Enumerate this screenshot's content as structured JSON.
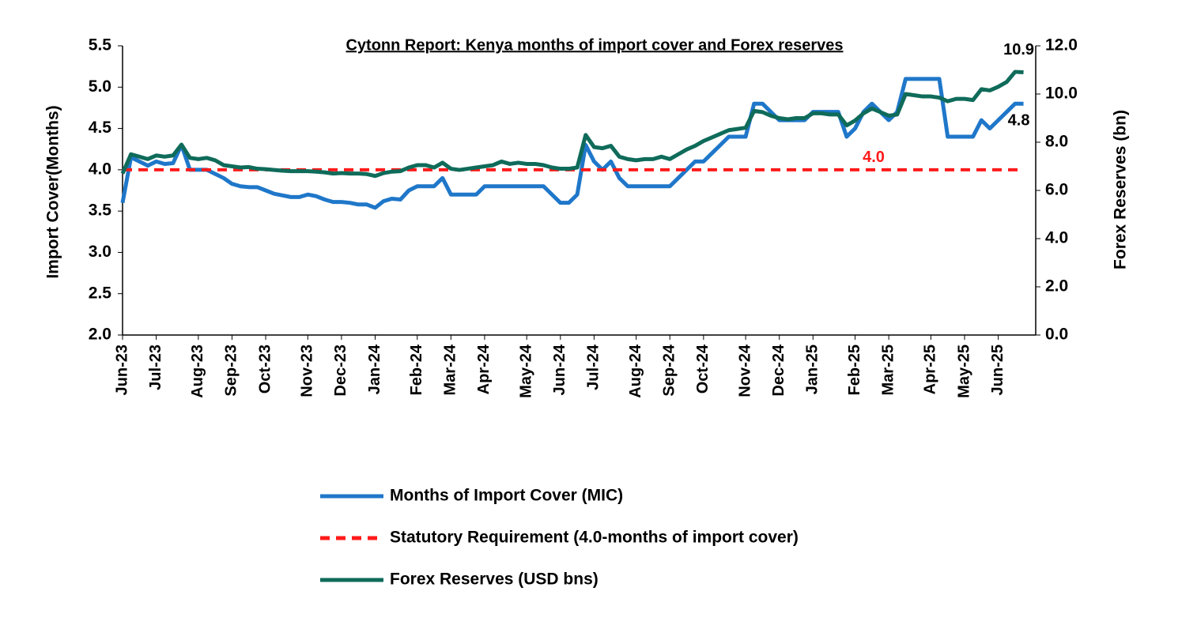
{
  "chart_data": {
    "type": "line",
    "title": "Cytonn Report: Kenya months of import cover and Forex reserves",
    "y_label": "Import Cover(Months)",
    "y2_label": "Forex Reserves (bn)",
    "categories": [
      "Jun-23",
      null,
      null,
      null,
      "Jul-23",
      null,
      null,
      null,
      null,
      "Aug-23",
      null,
      null,
      null,
      "Sep-23",
      null,
      null,
      null,
      "Oct-23",
      null,
      null,
      null,
      null,
      "Nov-23",
      null,
      null,
      null,
      "Dec-23",
      null,
      null,
      null,
      "Jan-24",
      null,
      null,
      null,
      null,
      "Feb-24",
      null,
      null,
      null,
      "Mar-24",
      null,
      null,
      null,
      "Apr-24",
      null,
      null,
      null,
      null,
      "May-24",
      null,
      null,
      null,
      "Jun-24",
      null,
      null,
      null,
      "Jul-24",
      null,
      null,
      null,
      null,
      "Aug-24",
      null,
      null,
      null,
      "Sep-24",
      null,
      null,
      null,
      "Oct-24",
      null,
      null,
      null,
      null,
      "Nov-24",
      null,
      null,
      null,
      "Dec-24",
      null,
      null,
      null,
      "Jan-25",
      null,
      null,
      null,
      null,
      "Feb-25",
      null,
      null,
      null,
      "Mar-25",
      null,
      null,
      null,
      null,
      "Apr-25",
      null,
      null,
      null,
      "May-25",
      null,
      null,
      null,
      "Jun-25",
      null,
      null,
      null
    ],
    "series": [
      {
        "name": "Months of Import Cover (MIC)",
        "color": "#1f77c9",
        "axis": "y",
        "values": [
          3.6,
          4.15,
          4.1,
          4.05,
          4.1,
          4.07,
          4.08,
          4.3,
          4.0,
          4.0,
          4.0,
          3.95,
          3.9,
          3.83,
          3.8,
          3.79,
          3.79,
          3.75,
          3.71,
          3.69,
          3.67,
          3.67,
          3.7,
          3.68,
          3.64,
          3.61,
          3.61,
          3.6,
          3.58,
          3.58,
          3.54,
          3.62,
          3.65,
          3.64,
          3.75,
          3.8,
          3.8,
          3.8,
          3.9,
          3.7,
          3.7,
          3.7,
          3.7,
          3.8,
          3.8,
          3.8,
          3.8,
          3.8,
          3.8,
          3.8,
          3.8,
          3.7,
          3.6,
          3.6,
          3.7,
          4.3,
          4.1,
          4.0,
          4.1,
          3.9,
          3.8,
          3.8,
          3.8,
          3.8,
          3.8,
          3.8,
          3.9,
          4.0,
          4.1,
          4.1,
          4.2,
          4.3,
          4.4,
          4.4,
          4.4,
          4.8,
          4.8,
          4.7,
          4.6,
          4.6,
          4.6,
          4.6,
          4.7,
          4.7,
          4.7,
          4.7,
          4.4,
          4.5,
          4.7,
          4.8,
          4.7,
          4.6,
          4.7,
          5.1,
          5.1,
          5.1,
          5.1,
          5.1,
          4.4,
          4.4,
          4.4,
          4.4,
          4.6,
          4.5,
          4.6,
          4.7,
          4.8,
          4.8
        ],
        "last_value_label": "4.8"
      },
      {
        "name": "Statutory Requirement (4.0-months of import cover)",
        "color": "#ff1a1a",
        "axis": "y",
        "dashed": true,
        "value": 4.0,
        "value_label": "4.0"
      },
      {
        "name": "Forex Reserves (USD bns)",
        "color": "#0f6b5a",
        "axis": "y2",
        "values": [
          6.7,
          7.5,
          7.4,
          7.3,
          7.45,
          7.4,
          7.45,
          7.9,
          7.35,
          7.3,
          7.35,
          7.25,
          7.05,
          7.0,
          6.95,
          6.97,
          6.9,
          6.88,
          6.85,
          6.82,
          6.8,
          6.8,
          6.8,
          6.78,
          6.75,
          6.7,
          6.72,
          6.7,
          6.7,
          6.68,
          6.6,
          6.72,
          6.78,
          6.8,
          6.95,
          7.05,
          7.05,
          6.95,
          7.15,
          6.9,
          6.85,
          6.9,
          6.95,
          7.0,
          7.05,
          7.2,
          7.1,
          7.15,
          7.1,
          7.1,
          7.05,
          6.95,
          6.9,
          6.9,
          6.95,
          8.3,
          7.8,
          7.75,
          7.85,
          7.4,
          7.3,
          7.25,
          7.3,
          7.3,
          7.4,
          7.3,
          7.5,
          7.7,
          7.85,
          8.05,
          8.2,
          8.35,
          8.5,
          8.55,
          8.6,
          9.3,
          9.25,
          9.1,
          9.0,
          8.95,
          9.0,
          9.0,
          9.2,
          9.2,
          9.15,
          9.15,
          8.7,
          8.9,
          9.2,
          9.4,
          9.25,
          9.1,
          9.15,
          10.0,
          9.95,
          9.9,
          9.9,
          9.85,
          9.7,
          9.8,
          9.8,
          9.75,
          10.2,
          10.15,
          10.3,
          10.5,
          10.92,
          10.9
        ],
        "last_value_label": "10.9"
      }
    ],
    "ylim": [
      2,
      5.5
    ],
    "yticks": [
      {
        "value": 2,
        "label": "2.0"
      },
      {
        "value": 2.5,
        "label": "2.5"
      },
      {
        "value": 3,
        "label": "3.0"
      },
      {
        "value": 3.5,
        "label": "3.5"
      },
      {
        "value": 4,
        "label": "4.0"
      },
      {
        "value": 4.5,
        "label": "4.5"
      },
      {
        "value": 5,
        "label": "5.0"
      },
      {
        "value": 5.5,
        "label": "5.5"
      }
    ],
    "y2lim": [
      0,
      12
    ],
    "y2ticks": [
      {
        "value": 0,
        "label": "0.0"
      },
      {
        "value": 2,
        "label": "2.0"
      },
      {
        "value": 4,
        "label": "4.0"
      },
      {
        "value": 6,
        "label": "6.0"
      },
      {
        "value": 8,
        "label": "8.0"
      },
      {
        "value": 10,
        "label": "10.0"
      },
      {
        "value": 12,
        "label": "12.0"
      }
    ],
    "grid": false,
    "legend": "bottom"
  }
}
